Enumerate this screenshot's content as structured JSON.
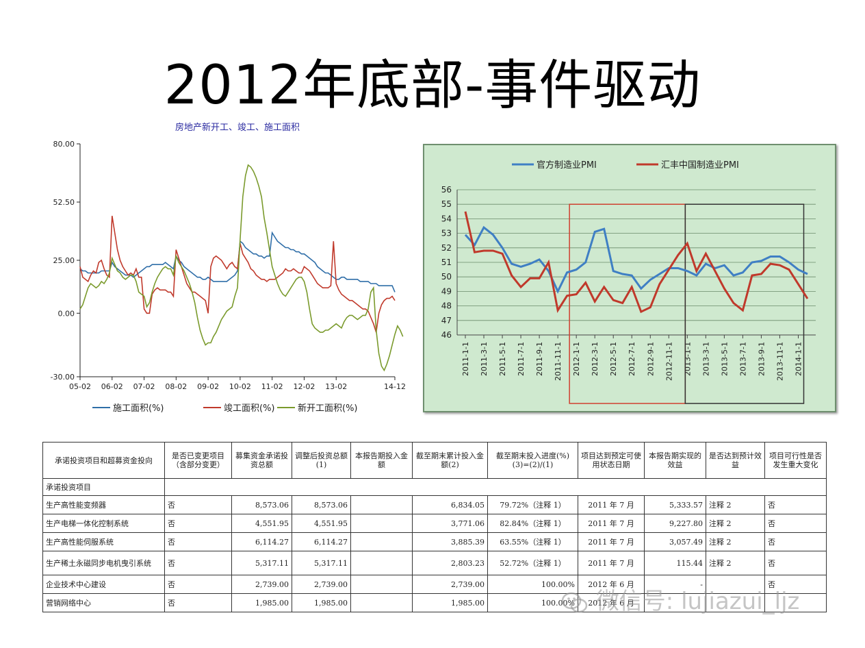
{
  "slide": {
    "title": "2012年底部-事件驱动"
  },
  "chart_data": [
    {
      "type": "line",
      "title": "房地产新开工、竣工、施工面积",
      "ylim": [
        -30,
        80
      ],
      "yticks": [
        "80.00",
        "52.50",
        "25.00",
        "0.00",
        "-30.00"
      ],
      "ytick_values": [
        80,
        52.5,
        25,
        0,
        -30
      ],
      "xticks": [
        "05-02",
        "06-02",
        "07-02",
        "08-02",
        "09-02",
        "10-02",
        "11-02",
        "12-02",
        "13-02",
        "14-12"
      ],
      "xtick_index": [
        0,
        12,
        24,
        36,
        48,
        60,
        72,
        84,
        96,
        118
      ],
      "series": [
        {
          "name": "施工面积(%)",
          "color": "#2f6ea8",
          "values": [
            21,
            20,
            20,
            19,
            19,
            19,
            19,
            19,
            20,
            20,
            20,
            20,
            24,
            22,
            21,
            20,
            19,
            18,
            18,
            18,
            17,
            18,
            19,
            20,
            21,
            22,
            22,
            23,
            23,
            23,
            23,
            23,
            24,
            23,
            22,
            21,
            27,
            25,
            24,
            22,
            21,
            20,
            19,
            18,
            17,
            17,
            16,
            16,
            17,
            16,
            15,
            15,
            15,
            15,
            15,
            15,
            16,
            17,
            18,
            20,
            34,
            33,
            31,
            30,
            29,
            28,
            28,
            27,
            27,
            26,
            27,
            27,
            38,
            36,
            34,
            33,
            32,
            31,
            31,
            30,
            30,
            29,
            29,
            28,
            28,
            27,
            26,
            25,
            24,
            22,
            21,
            20,
            19,
            19,
            18,
            17,
            16,
            16,
            17,
            17,
            16,
            16,
            16,
            16,
            16,
            15,
            15,
            15,
            15,
            14,
            14,
            14,
            13,
            13,
            13,
            13,
            13,
            13,
            10
          ]
        },
        {
          "name": "竣工面积(%)",
          "color": "#c0392b",
          "values": [
            22,
            17,
            16,
            15,
            18,
            20,
            19,
            24,
            25,
            21,
            18,
            17,
            46,
            38,
            30,
            25,
            22,
            20,
            18,
            19,
            18,
            21,
            17,
            17,
            2,
            0,
            0,
            9,
            11,
            12,
            11,
            11,
            11,
            10,
            10,
            8,
            30,
            26,
            22,
            18,
            14,
            12,
            10,
            10,
            9,
            8,
            7,
            6,
            0,
            22,
            26,
            27,
            26,
            25,
            23,
            21,
            23,
            24,
            22,
            21,
            33,
            28,
            26,
            24,
            21,
            20,
            18,
            17,
            16,
            16,
            15,
            16,
            16,
            16,
            17,
            18,
            19,
            21,
            20,
            20,
            21,
            20,
            19,
            19,
            22,
            21,
            20,
            18,
            16,
            14,
            13,
            12,
            12,
            12,
            13,
            34,
            14,
            11,
            9,
            8,
            7,
            6,
            6,
            5,
            4,
            3,
            2,
            2,
            1,
            -2,
            -5,
            -9,
            0,
            4,
            6,
            7,
            7,
            8,
            6
          ]
        },
        {
          "name": "新开工面积(%)",
          "color": "#7a9a2c",
          "values": [
            2,
            4,
            8,
            12,
            14,
            13,
            12,
            13,
            15,
            14,
            16,
            19,
            26,
            23,
            20,
            19,
            17,
            16,
            17,
            18,
            18,
            15,
            10,
            9,
            8,
            3,
            5,
            10,
            14,
            17,
            19,
            21,
            22,
            21,
            21,
            18,
            27,
            24,
            22,
            20,
            17,
            14,
            10,
            5,
            -2,
            -8,
            -12,
            -15,
            -14,
            -14,
            -11,
            -9,
            -6,
            -3,
            -1,
            1,
            2,
            3,
            8,
            12,
            35,
            55,
            65,
            70,
            69,
            67,
            64,
            60,
            55,
            45,
            38,
            30,
            22,
            18,
            14,
            11,
            9,
            8,
            10,
            12,
            14,
            16,
            17,
            17,
            15,
            10,
            2,
            -5,
            -7,
            -8,
            -9,
            -9,
            -8,
            -8,
            -7,
            -6,
            -5,
            -6,
            -7,
            -4,
            -2,
            -1,
            -1,
            -2,
            -3,
            -2,
            -1,
            -1,
            2,
            10,
            12,
            -8,
            -19,
            -25,
            -27,
            -24,
            -20,
            -15,
            -10,
            -6,
            -8,
            -11
          ]
        }
      ]
    },
    {
      "type": "line",
      "title": "",
      "ylim": [
        46,
        56
      ],
      "yticks": [
        46,
        47,
        48,
        49,
        50,
        51,
        52,
        53,
        54,
        55,
        56
      ],
      "x": [
        "2011-1-1",
        "2011-2-1",
        "2011-3-1",
        "2011-4-1",
        "2011-5-1",
        "2011-6-1",
        "2011-7-1",
        "2011-8-1",
        "2011-9-1",
        "2011-10-1",
        "2011-11-1",
        "2011-12-1",
        "2012-1-1",
        "2012-2-1",
        "2012-3-1",
        "2012-4-1",
        "2012-5-1",
        "2012-6-1",
        "2012-7-1",
        "2012-8-1",
        "2012-9-1",
        "2012-10-1",
        "2012-11-1",
        "2012-12-1",
        "2013-1-1",
        "2013-2-1",
        "2013-3-1",
        "2013-4-1",
        "2013-5-1",
        "2013-6-1",
        "2013-7-1",
        "2013-8-1",
        "2013-9-1",
        "2013-10-1",
        "2013-11-1",
        "2013-12-1",
        "2014-1-1",
        "2014-2-1"
      ],
      "xticks": [
        "2011-1-1",
        "2011-3-1",
        "2011-5-1",
        "2011-7-1",
        "2011-9-1",
        "2011-11-1",
        "2012-1-1",
        "2012-3-1",
        "2012-5-1",
        "2012-7-1",
        "2012-9-1",
        "2012-11-1",
        "2013-1-1",
        "2013-3-1",
        "2013-5-1",
        "2013-7-1",
        "2013-9-1",
        "2013-11-1",
        "2014-1-1"
      ],
      "grid": true,
      "legend": "top",
      "series": [
        {
          "name": "官方制造业PMI",
          "color": "#3f7fc4",
          "values": [
            52.9,
            52.2,
            53.4,
            52.9,
            52.0,
            50.9,
            50.7,
            50.9,
            51.2,
            50.4,
            49.0,
            50.3,
            50.5,
            51.0,
            53.1,
            53.3,
            50.4,
            50.2,
            50.1,
            49.2,
            49.8,
            50.2,
            50.6,
            50.6,
            50.4,
            50.1,
            50.9,
            50.6,
            50.8,
            50.1,
            50.3,
            51.0,
            51.1,
            51.4,
            51.4,
            51.0,
            50.5,
            50.2
          ]
        },
        {
          "name": "汇丰中国制造业PMI",
          "color": "#c0392b",
          "values": [
            54.5,
            51.7,
            51.8,
            51.8,
            51.6,
            50.1,
            49.3,
            49.9,
            49.9,
            51.0,
            47.7,
            48.7,
            48.8,
            49.6,
            48.3,
            49.3,
            48.4,
            48.2,
            49.3,
            47.6,
            47.9,
            49.5,
            50.5,
            51.5,
            52.3,
            50.4,
            51.6,
            50.4,
            49.2,
            48.2,
            47.7,
            50.1,
            50.2,
            50.9,
            50.8,
            50.5,
            49.5,
            48.5
          ]
        }
      ]
    }
  ],
  "table": {
    "headers": [
      "承诺投资项目和超募资金投向",
      "是否已变更项目（含部分变更）",
      "募集资金承诺投资总额",
      "调整后投资总额(1)",
      "本报告期投入金额",
      "截至期末累计投入金额(2)",
      "截至期末投入进度(%)(3)=(2)/(1)",
      "项目达到预定可使用状态日期",
      "本报告期实现的效益",
      "是否达到预计效益",
      "项目可行性是否发生重大变化"
    ],
    "section_label": "承诺投资项目",
    "rows": [
      [
        "生产高性能变频器",
        "否",
        "8,573.06",
        "8,573.06",
        "",
        "6,834.05",
        "79.72%（注释 1）",
        "2011 年 7 月",
        "5,333.57",
        "注释 2",
        "否"
      ],
      [
        "生产电梯一体化控制系统",
        "否",
        "4,551.95",
        "4,551.95",
        "",
        "3,771.06",
        "82.84%（注释 1）",
        "2011 年 7 月",
        "9,227.80",
        "注释 2",
        "否"
      ],
      [
        "生产高性能伺服系统",
        "否",
        "6,114.27",
        "6,114.27",
        "",
        "3,885.39",
        "63.55%（注释 1）",
        "2011 年 7 月",
        "3,057.49",
        "注释 2",
        "否"
      ],
      [
        "生产稀土永磁同步电机曳引系统",
        "否",
        "5,317.11",
        "5,317.11",
        "",
        "2,803.23",
        "52.72%（注释 1）",
        "2011 年 7 月",
        "115.44",
        "注释 2",
        "否"
      ],
      [
        "企业技术中心建设",
        "否",
        "2,739.00",
        "2,739.00",
        "",
        "2,739.00",
        "100.00%",
        "2012 年 6 月",
        "-",
        "",
        "否"
      ],
      [
        "营销网络中心",
        "否",
        "1,985.00",
        "1,985.00",
        "",
        "1,985.00",
        "100.00%",
        "2012 年 6 月",
        "",
        "",
        ""
      ]
    ]
  },
  "watermark": {
    "text": "微信号: lujiazui_ljz"
  }
}
